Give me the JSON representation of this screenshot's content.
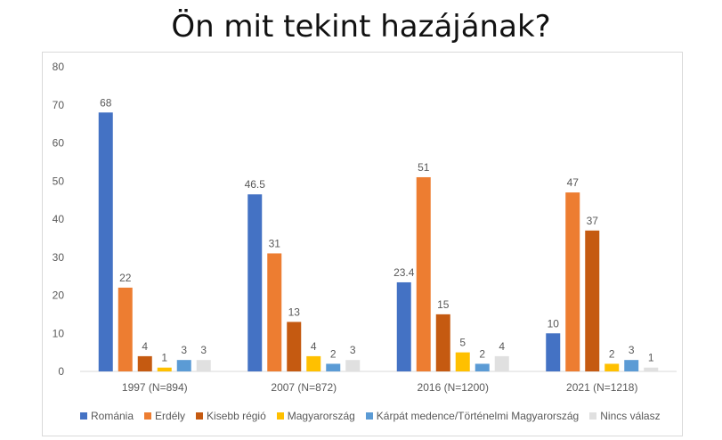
{
  "title": "Ön mit tekint hazájának?",
  "chart_data": {
    "type": "bar",
    "title": "Ön mit tekint hazájának?",
    "categories": [
      "1997 (N=894)",
      "2007 (N=872)",
      "2016 (N=1200)",
      "2021 (N=1218)"
    ],
    "series": [
      {
        "name": "Románia",
        "color": "#4472c4",
        "values": [
          68,
          46.5,
          23.4,
          10
        ],
        "labels": [
          "68",
          "46.5",
          "23.4",
          "10"
        ]
      },
      {
        "name": "Erdély",
        "color": "#ed7d31",
        "values": [
          22,
          31,
          51,
          47
        ],
        "labels": [
          "22",
          "31",
          "51",
          "47"
        ]
      },
      {
        "name": "Kisebb régió",
        "color": "#c55a11",
        "values": [
          4,
          13,
          15,
          37
        ],
        "labels": [
          "4",
          "13",
          "15",
          "37"
        ]
      },
      {
        "name": "Magyarország",
        "color": "#ffc000",
        "values": [
          1,
          4,
          5,
          2
        ],
        "labels": [
          "1",
          "4",
          "5",
          "2"
        ]
      },
      {
        "name": "Kárpát medence/Történelmi Magyarország",
        "color": "#5b9bd5",
        "values": [
          3,
          2,
          2,
          3
        ],
        "labels": [
          "3",
          "2",
          "2",
          "3"
        ]
      },
      {
        "name": "Nincs válasz",
        "color": "#e0e0e0",
        "values": [
          3,
          3,
          4,
          1
        ],
        "labels": [
          "3",
          "3",
          "4",
          "1"
        ]
      }
    ],
    "yticks": [
      "0",
      "10",
      "20",
      "30",
      "40",
      "50",
      "60",
      "70",
      "80"
    ],
    "ylim": [
      0,
      80
    ],
    "xlabel": "",
    "ylabel": "",
    "legend_position": "bottom"
  }
}
